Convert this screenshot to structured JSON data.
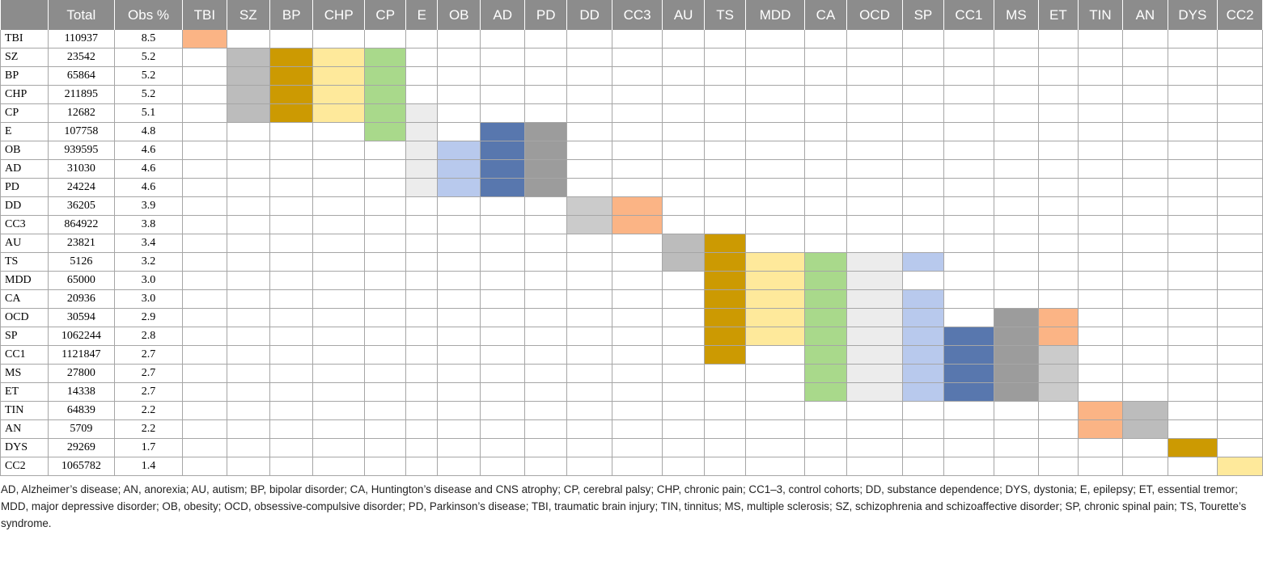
{
  "table": {
    "columns": [
      "",
      "Total",
      "Obs %",
      "TBI",
      "SZ",
      "BP",
      "CHP",
      "CP",
      "E",
      "OB",
      "AD",
      "PD",
      "DD",
      "CC3",
      "AU",
      "TS",
      "MDD",
      "CA",
      "OCD",
      "SP",
      "CC1",
      "MS",
      "ET",
      "TIN",
      "AN",
      "DYS",
      "CC2"
    ],
    "rows": [
      {
        "label": "TBI",
        "total": "110937",
        "obs": "8.5"
      },
      {
        "label": "SZ",
        "total": "23542",
        "obs": "5.2"
      },
      {
        "label": "BP",
        "total": "65864",
        "obs": "5.2"
      },
      {
        "label": "CHP",
        "total": "211895",
        "obs": "5.2"
      },
      {
        "label": "CP",
        "total": "12682",
        "obs": "5.1"
      },
      {
        "label": "E",
        "total": "107758",
        "obs": "4.8"
      },
      {
        "label": "OB",
        "total": "939595",
        "obs": "4.6"
      },
      {
        "label": "AD",
        "total": "31030",
        "obs": "4.6"
      },
      {
        "label": "PD",
        "total": "24224",
        "obs": "4.6"
      },
      {
        "label": "DD",
        "total": "36205",
        "obs": "3.9"
      },
      {
        "label": "CC3",
        "total": "864922",
        "obs": "3.8"
      },
      {
        "label": "AU",
        "total": "23821",
        "obs": "3.4"
      },
      {
        "label": "TS",
        "total": "5126",
        "obs": "3.2"
      },
      {
        "label": "MDD",
        "total": "65000",
        "obs": "3.0"
      },
      {
        "label": "CA",
        "total": "20936",
        "obs": "3.0"
      },
      {
        "label": "OCD",
        "total": "30594",
        "obs": "2.9"
      },
      {
        "label": "SP",
        "total": "1062244",
        "obs": "2.8"
      },
      {
        "label": "CC1",
        "total": "1121847",
        "obs": "2.7"
      },
      {
        "label": "MS",
        "total": "27800",
        "obs": "2.7"
      },
      {
        "label": "ET",
        "total": "14338",
        "obs": "2.7"
      },
      {
        "label": "TIN",
        "total": "64839",
        "obs": "2.2"
      },
      {
        "label": "AN",
        "total": "5709",
        "obs": "2.2"
      },
      {
        "label": "DYS",
        "total": "29269",
        "obs": "1.7"
      },
      {
        "label": "CC2",
        "total": "1065782",
        "obs": "1.4"
      }
    ],
    "shading": {
      "colors": [
        "#fbb485",
        "#bcbcbc",
        "#cc9a02",
        "#fee99b",
        "#a9d98b",
        "#ececec",
        "#b8c9ed",
        "#5877ae",
        "#9c9c9c",
        "#cbcbcb"
      ],
      "cells": [
        "1-----------------------",
        "-2345-------------------",
        "-2345-------------------",
        "-2345-------------------",
        "-23456------------------",
        "----56-89---------------",
        "-----6789---------------",
        "-----6789---------------",
        "-----6789---------------",
        "---------01-------------",
        "---------01-------------",
        "-----------23-----------",
        "-----------234567-------",
        "------------3456--------",
        "------------34567-------",
        "------------34567-9A----",
        "------------3456789A----",
        "------------3-567890----",
        "--------------567890----",
        "--------------567890----",
        "--------------------12--",
        "--------------------12--",
        "----------------------3-",
        "-----------------------4"
      ]
    }
  },
  "footnote": "AD, Alzheimer’s disease; AN, anorexia; AU, autism; BP, bipolar disorder; CA, Huntington’s disease and CNS atrophy; CP, cerebral palsy; CHP, chronic pain; CC1–3, control cohorts; DD, substance dependence; DYS, dystonia; E, epilepsy; ET, essential tremor; MDD, major depressive disorder; OB, obesity; OCD, obsessive-compulsive disorder; PD, Parkinson’s disease; TBI, traumatic brain injury; TIN, tinnitus; MS, multiple sclerosis; SZ, schizophrenia and schizoaffective disorder; SP, chronic spinal pain; TS, Tourette’s syndrome."
}
